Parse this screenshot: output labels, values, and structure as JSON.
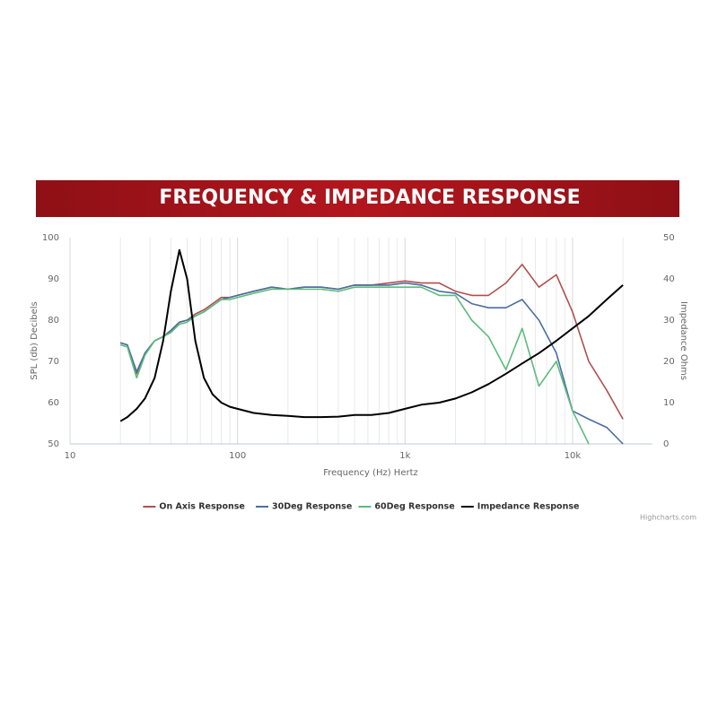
{
  "chart_data": {
    "type": "line",
    "title": "FREQUENCY & IMPEDANCE RESPONSE",
    "x_label": "Frequency (Hz) Hertz",
    "y_label": "SPL (db) Decibels",
    "y2_label": "Impedance Ohms",
    "credits": "Highcharts.com",
    "x_log": true,
    "xlim": [
      10,
      30000
    ],
    "xticks": [
      10,
      100,
      {
        "value": 1000,
        "label": "1k"
      },
      {
        "value": 10000,
        "label": "10k"
      }
    ],
    "x_minor_grid": [
      20,
      30,
      40,
      50,
      60,
      70,
      80,
      90,
      200,
      300,
      400,
      500,
      600,
      700,
      800,
      900,
      2000,
      3000,
      4000,
      5000,
      6000,
      7000,
      8000,
      9000,
      20000
    ],
    "ylim": [
      50,
      100
    ],
    "yticks": [
      50,
      60,
      70,
      80,
      90,
      100
    ],
    "y2lim": [
      0,
      50
    ],
    "y2ticks": [
      0,
      10,
      20,
      30,
      40,
      50
    ],
    "legend": "bottom",
    "x": [
      20,
      22,
      25,
      28,
      32,
      36,
      40,
      45,
      50,
      56,
      63,
      71,
      80,
      90,
      100,
      125,
      160,
      200,
      250,
      315,
      400,
      500,
      630,
      800,
      1000,
      1250,
      1600,
      2000,
      2500,
      3150,
      4000,
      5000,
      6300,
      8000,
      10000,
      12500,
      16000,
      20000
    ],
    "series": [
      {
        "name": "On Axis Response",
        "color": "#b0504f",
        "values": [
          74.5,
          74,
          67,
          72,
          75,
          76,
          77.5,
          79.5,
          80,
          81.5,
          82.5,
          84,
          85.5,
          85.5,
          86,
          87,
          88,
          87.5,
          88,
          88,
          87.5,
          88.5,
          88.5,
          89,
          89.5,
          89,
          89,
          87,
          86,
          86,
          89,
          93.5,
          88,
          91,
          82,
          70,
          63,
          56
        ]
      },
      {
        "name": "30Deg Response",
        "color": "#4a6fa0",
        "values": [
          74.5,
          74,
          67.5,
          72,
          75,
          76,
          77.5,
          79.5,
          80,
          81,
          82,
          83.5,
          85,
          85.5,
          86,
          87,
          88,
          87.5,
          88,
          88,
          87.5,
          88.5,
          88.5,
          88.5,
          89,
          88.5,
          87,
          86.5,
          84,
          83,
          83,
          85,
          80,
          72,
          58,
          56,
          54,
          50
        ]
      },
      {
        "name": "60Deg Response",
        "color": "#5dbb7c",
        "values": [
          74,
          73.5,
          66,
          71.5,
          75,
          76,
          77,
          79,
          79.5,
          81,
          82,
          83.5,
          85,
          85,
          85.5,
          86.5,
          87.5,
          87.5,
          87.5,
          87.5,
          87,
          88,
          88,
          88,
          88,
          88,
          86,
          86,
          80,
          76,
          68,
          78,
          64,
          70,
          58,
          50,
          null,
          null
        ]
      },
      {
        "name": "Impedance Response",
        "color": "#000000",
        "axis": "y2",
        "values": [
          5.5,
          6.5,
          8.5,
          11,
          16,
          25,
          37,
          47,
          40,
          25,
          16,
          12,
          10,
          9,
          8.5,
          7.5,
          7,
          6.8,
          6.5,
          6.5,
          6.6,
          7,
          7,
          7.5,
          8.5,
          9.5,
          10,
          11,
          12.5,
          14.5,
          17,
          19.5,
          22,
          25,
          28,
          31,
          35,
          38.5
        ]
      }
    ]
  }
}
